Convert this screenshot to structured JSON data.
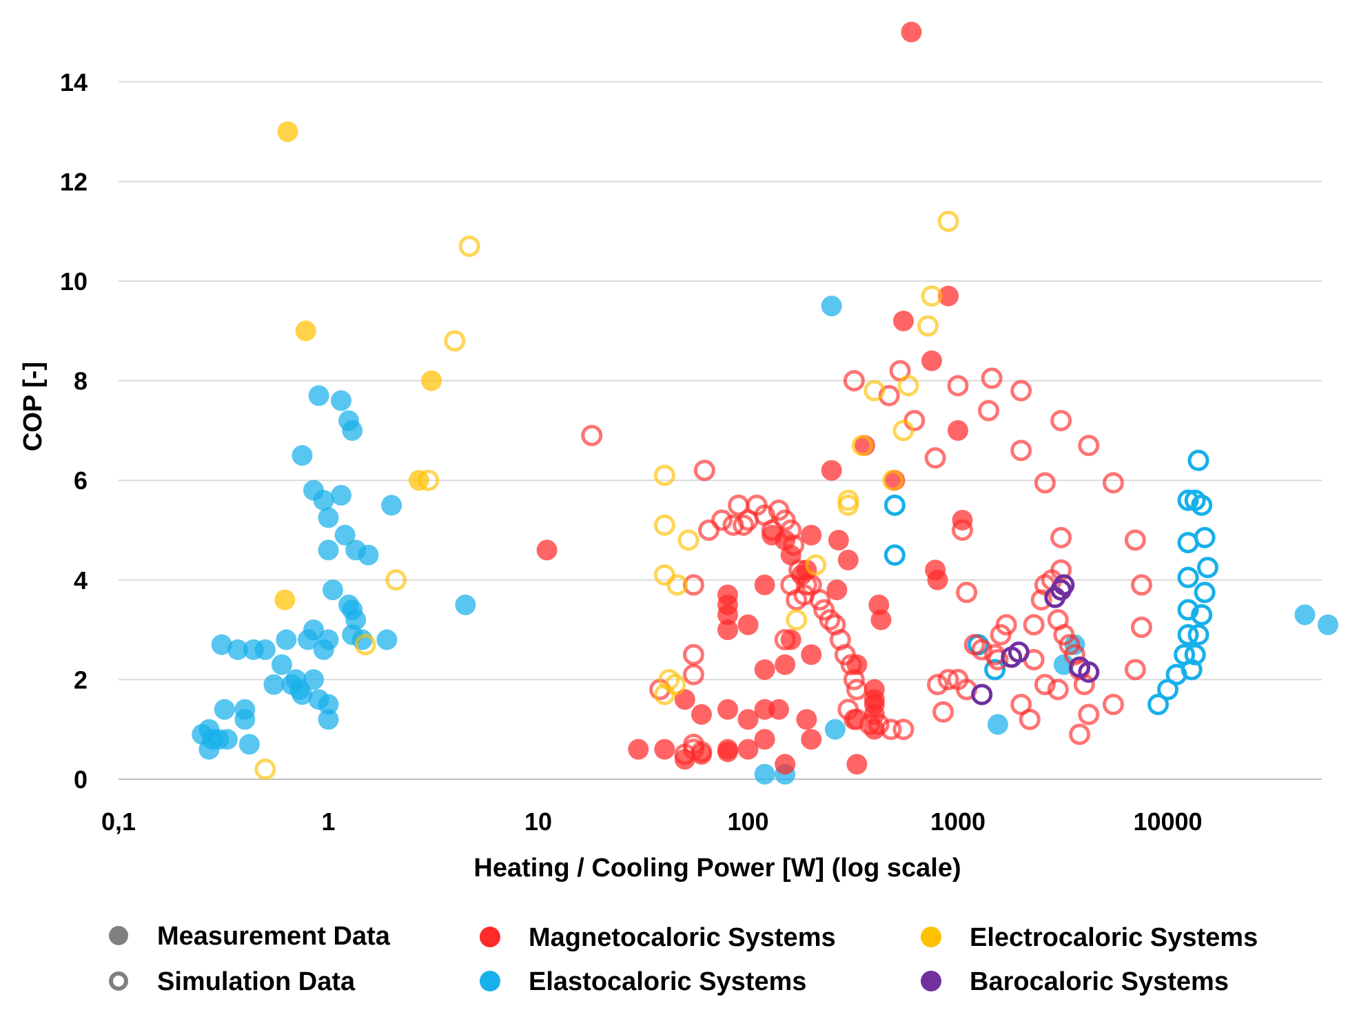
{
  "chart_data": {
    "type": "scatter",
    "xlabel": "Heating / Cooling Power [W] (log scale)",
    "ylabel": "COP [-]",
    "x_scale": "log",
    "xlim": [
      0.1,
      70000
    ],
    "ylim": [
      0,
      15
    ],
    "x_ticks": [
      0.1,
      1,
      10,
      100,
      1000,
      10000
    ],
    "x_tick_labels": [
      "0,1",
      "1",
      "10",
      "100",
      "1000",
      "10000"
    ],
    "y_ticks": [
      0,
      2,
      4,
      6,
      8,
      10,
      12,
      14
    ],
    "y_tick_labels": [
      "0",
      "2",
      "4",
      "6",
      "8",
      "10",
      "12",
      "14"
    ],
    "grid": "horizontal",
    "legend_position": "bottom",
    "legend": [
      {
        "label": "Measurement Data",
        "marker": "filled",
        "color": "#808080"
      },
      {
        "label": "Simulation Data",
        "marker": "open",
        "color": "#808080"
      },
      {
        "label": "Magnetocaloric Systems",
        "marker": "filled",
        "color": "#ff2a2a"
      },
      {
        "label": "Elastocaloric Systems",
        "marker": "filled",
        "color": "#17b0ea"
      },
      {
        "label": "Electrocaloric Systems",
        "marker": "filled",
        "color": "#ffc000"
      },
      {
        "label": "Barocaloric Systems",
        "marker": "filled",
        "color": "#7030a0"
      }
    ],
    "series": [
      {
        "system": "Elastocaloric",
        "data_type": "Measurement",
        "color": "#17b0ea",
        "marker": "filled",
        "points": [
          [
            0.25,
            0.9
          ],
          [
            0.27,
            1.0
          ],
          [
            0.28,
            0.8
          ],
          [
            0.27,
            0.6
          ],
          [
            0.3,
            0.8
          ],
          [
            0.32,
            1.4
          ],
          [
            0.33,
            0.8
          ],
          [
            0.31,
            2.7
          ],
          [
            0.37,
            2.6
          ],
          [
            0.4,
            1.4
          ],
          [
            0.4,
            1.2
          ],
          [
            0.42,
            0.7
          ],
          [
            0.44,
            2.6
          ],
          [
            0.5,
            2.6
          ],
          [
            0.55,
            1.9
          ],
          [
            0.6,
            2.3
          ],
          [
            0.63,
            2.8
          ],
          [
            0.67,
            1.9
          ],
          [
            0.7,
            2.0
          ],
          [
            0.73,
            1.8
          ],
          [
            0.75,
            1.7
          ],
          [
            0.8,
            2.8
          ],
          [
            0.85,
            3.0
          ],
          [
            0.9,
            1.6
          ],
          [
            0.85,
            2.0
          ],
          [
            0.95,
            2.6
          ],
          [
            1.0,
            2.8
          ],
          [
            1.0,
            1.5
          ],
          [
            1.0,
            1.2
          ],
          [
            0.9,
            7.7
          ],
          [
            1.15,
            7.6
          ],
          [
            1.25,
            7.2
          ],
          [
            1.3,
            7.0
          ],
          [
            0.75,
            6.5
          ],
          [
            0.85,
            5.8
          ],
          [
            0.95,
            5.6
          ],
          [
            1.0,
            5.25
          ],
          [
            1.15,
            5.7
          ],
          [
            1.2,
            4.9
          ],
          [
            1.0,
            4.6
          ],
          [
            1.35,
            4.6
          ],
          [
            1.55,
            4.5
          ],
          [
            1.05,
            3.8
          ],
          [
            1.25,
            3.5
          ],
          [
            1.3,
            3.4
          ],
          [
            1.35,
            3.2
          ],
          [
            1.3,
            2.9
          ],
          [
            1.45,
            2.8
          ],
          [
            1.9,
            2.8
          ],
          [
            2.0,
            5.5
          ],
          [
            4.5,
            3.5
          ],
          [
            250,
            9.5
          ],
          [
            260,
            1.0
          ],
          [
            120,
            0.1
          ],
          [
            150,
            0.1
          ],
          [
            1550,
            1.1
          ],
          [
            3200,
            2.3
          ],
          [
            3600,
            2.7
          ],
          [
            45000,
            3.3
          ],
          [
            58000,
            3.1
          ]
        ]
      },
      {
        "system": "Elastocaloric",
        "data_type": "Simulation",
        "color": "#17b0ea",
        "marker": "open",
        "points": [
          [
            500,
            5.5
          ],
          [
            500,
            4.5
          ],
          [
            1250,
            2.7
          ],
          [
            1500,
            2.2
          ],
          [
            9000,
            1.5
          ],
          [
            10000,
            1.8
          ],
          [
            11000,
            2.1
          ],
          [
            12000,
            2.5
          ],
          [
            12500,
            2.9
          ],
          [
            12500,
            3.4
          ],
          [
            12500,
            4.05
          ],
          [
            12500,
            4.75
          ],
          [
            12500,
            5.6
          ],
          [
            13500,
            5.6
          ],
          [
            14500,
            5.5
          ],
          [
            14000,
            6.4
          ],
          [
            15000,
            4.85
          ],
          [
            15500,
            4.25
          ],
          [
            15000,
            3.75
          ],
          [
            14500,
            3.3
          ],
          [
            14000,
            2.9
          ],
          [
            13500,
            2.5
          ],
          [
            13000,
            2.2
          ]
        ]
      },
      {
        "system": "Electrocaloric",
        "data_type": "Measurement",
        "color": "#ffc000",
        "marker": "filled",
        "points": [
          [
            0.64,
            13.0
          ],
          [
            0.78,
            9.0
          ],
          [
            3.1,
            8.0
          ],
          [
            2.7,
            6.0
          ],
          [
            0.62,
            3.6
          ]
        ]
      },
      {
        "system": "Electrocaloric",
        "data_type": "Simulation",
        "color": "#ffc000",
        "marker": "open",
        "points": [
          [
            0.5,
            0.2
          ],
          [
            4.7,
            10.7
          ],
          [
            4.0,
            8.8
          ],
          [
            3.0,
            6.0
          ],
          [
            2.1,
            4.0
          ],
          [
            1.5,
            2.7
          ],
          [
            900,
            11.2
          ],
          [
            750,
            9.7
          ],
          [
            720,
            9.1
          ],
          [
            400,
            7.8
          ],
          [
            580,
            7.9
          ],
          [
            550,
            7.0
          ],
          [
            350,
            6.7
          ],
          [
            490,
            6.0
          ],
          [
            300,
            5.6
          ],
          [
            300,
            5.5
          ],
          [
            40,
            6.1
          ],
          [
            40,
            5.1
          ],
          [
            52,
            4.8
          ],
          [
            40,
            4.1
          ],
          [
            46,
            3.9
          ],
          [
            210,
            4.3
          ],
          [
            170,
            3.2
          ],
          [
            42,
            2.0
          ],
          [
            45,
            1.9
          ],
          [
            40,
            1.7
          ]
        ]
      },
      {
        "system": "Magnetocaloric",
        "data_type": "Measurement",
        "color": "#ff2a2a",
        "marker": "filled",
        "points": [
          [
            600,
            15.0
          ],
          [
            550,
            9.2
          ],
          [
            900,
            9.7
          ],
          [
            750,
            8.4
          ],
          [
            360,
            6.7
          ],
          [
            500,
            6.0
          ],
          [
            11,
            4.6
          ],
          [
            120,
            3.9
          ],
          [
            80,
            3.7
          ],
          [
            80,
            3.5
          ],
          [
            80,
            3.3
          ],
          [
            80,
            3.0
          ],
          [
            80,
            0.6
          ],
          [
            80,
            0.55
          ],
          [
            30,
            0.6
          ],
          [
            40,
            0.6
          ],
          [
            50,
            0.4
          ],
          [
            60,
            0.5
          ],
          [
            100,
            0.6
          ],
          [
            120,
            0.8
          ],
          [
            150,
            0.3
          ],
          [
            100,
            3.1
          ],
          [
            200,
            2.5
          ],
          [
            420,
            3.5
          ],
          [
            430,
            3.2
          ],
          [
            400,
            1.8
          ],
          [
            400,
            1.6
          ],
          [
            400,
            1.5
          ],
          [
            400,
            1.3
          ],
          [
            400,
            1.0
          ],
          [
            330,
            0.3
          ],
          [
            320,
            1.2
          ],
          [
            250,
            6.2
          ],
          [
            270,
            4.8
          ],
          [
            265,
            3.8
          ],
          [
            150,
            2.3
          ],
          [
            120,
            2.2
          ],
          [
            140,
            1.4
          ],
          [
            120,
            1.4
          ],
          [
            100,
            1.2
          ],
          [
            160,
            2.8
          ],
          [
            180,
            4.1
          ],
          [
            190,
            4.2
          ],
          [
            200,
            4.9
          ],
          [
            160,
            4.5
          ],
          [
            150,
            4.8
          ],
          [
            130,
            4.9
          ],
          [
            80,
            1.4
          ],
          [
            60,
            1.3
          ],
          [
            50,
            1.6
          ],
          [
            200,
            0.8
          ],
          [
            190,
            1.2
          ],
          [
            1000,
            7.0
          ],
          [
            800,
            4.0
          ],
          [
            780,
            4.2
          ],
          [
            1050,
            5.2
          ],
          [
            330,
            2.3
          ],
          [
            300,
            4.4
          ]
        ]
      },
      {
        "system": "Magnetocaloric",
        "data_type": "Simulation",
        "color": "#ff2a2a",
        "marker": "open",
        "points": [
          [
            18,
            6.9
          ],
          [
            62,
            6.2
          ],
          [
            320,
            8.0
          ],
          [
            470,
            7.7
          ],
          [
            530,
            8.2
          ],
          [
            620,
            7.2
          ],
          [
            1000,
            7.9
          ],
          [
            1450,
            8.05
          ],
          [
            2000,
            7.8
          ],
          [
            3100,
            7.2
          ],
          [
            4200,
            6.7
          ],
          [
            5500,
            5.95
          ],
          [
            2600,
            5.95
          ],
          [
            2000,
            6.6
          ],
          [
            1400,
            7.4
          ],
          [
            780,
            6.45
          ],
          [
            65,
            5.0
          ],
          [
            75,
            5.2
          ],
          [
            85,
            5.1
          ],
          [
            90,
            5.5
          ],
          [
            95,
            5.1
          ],
          [
            100,
            5.2
          ],
          [
            110,
            5.5
          ],
          [
            120,
            5.3
          ],
          [
            130,
            5.0
          ],
          [
            140,
            5.4
          ],
          [
            150,
            5.2
          ],
          [
            160,
            5.0
          ],
          [
            165,
            4.7
          ],
          [
            175,
            4.2
          ],
          [
            185,
            3.7
          ],
          [
            200,
            3.9
          ],
          [
            220,
            3.6
          ],
          [
            230,
            3.4
          ],
          [
            245,
            3.2
          ],
          [
            260,
            3.1
          ],
          [
            275,
            2.8
          ],
          [
            290,
            2.5
          ],
          [
            310,
            2.3
          ],
          [
            320,
            2.0
          ],
          [
            330,
            1.8
          ],
          [
            300,
            1.4
          ],
          [
            160,
            3.9
          ],
          [
            170,
            3.6
          ],
          [
            190,
            3.9
          ],
          [
            150,
            2.8
          ],
          [
            55,
            3.9
          ],
          [
            55,
            2.5
          ],
          [
            55,
            2.1
          ],
          [
            38,
            1.8
          ],
          [
            55,
            0.7
          ],
          [
            55,
            0.6
          ],
          [
            60,
            0.55
          ],
          [
            50,
            0.5
          ],
          [
            330,
            1.2
          ],
          [
            380,
            1.1
          ],
          [
            420,
            1.1
          ],
          [
            480,
            1.0
          ],
          [
            550,
            1.0
          ],
          [
            1100,
            3.75
          ],
          [
            1050,
            5.0
          ],
          [
            1200,
            2.7
          ],
          [
            1300,
            2.6
          ],
          [
            1500,
            2.5
          ],
          [
            1550,
            2.4
          ],
          [
            1600,
            2.9
          ],
          [
            1700,
            3.1
          ],
          [
            2000,
            1.5
          ],
          [
            2200,
            1.2
          ],
          [
            2300,
            2.4
          ],
          [
            2300,
            3.1
          ],
          [
            2500,
            3.6
          ],
          [
            2600,
            3.9
          ],
          [
            2800,
            4.0
          ],
          [
            3000,
            3.2
          ],
          [
            3100,
            4.2
          ],
          [
            3200,
            2.9
          ],
          [
            3400,
            2.7
          ],
          [
            3600,
            2.5
          ],
          [
            3800,
            2.2
          ],
          [
            4000,
            1.9
          ],
          [
            4200,
            1.3
          ],
          [
            3800,
            0.9
          ],
          [
            3000,
            1.8
          ],
          [
            2600,
            1.9
          ],
          [
            7000,
            4.8
          ],
          [
            7500,
            3.9
          ],
          [
            7500,
            3.05
          ],
          [
            7000,
            2.2
          ],
          [
            5500,
            1.5
          ],
          [
            1000,
            2.0
          ],
          [
            900,
            2.0
          ],
          [
            800,
            1.9
          ],
          [
            850,
            1.35
          ],
          [
            1100,
            1.8
          ],
          [
            3100,
            4.85
          ]
        ]
      },
      {
        "system": "Barocaloric",
        "data_type": "Simulation",
        "color": "#7030a0",
        "marker": "open",
        "points": [
          [
            1300,
            1.7
          ],
          [
            1800,
            2.45
          ],
          [
            1950,
            2.55
          ],
          [
            2900,
            3.65
          ],
          [
            3100,
            3.8
          ],
          [
            3200,
            3.9
          ],
          [
            3800,
            2.25
          ],
          [
            4200,
            2.15
          ]
        ]
      }
    ]
  }
}
